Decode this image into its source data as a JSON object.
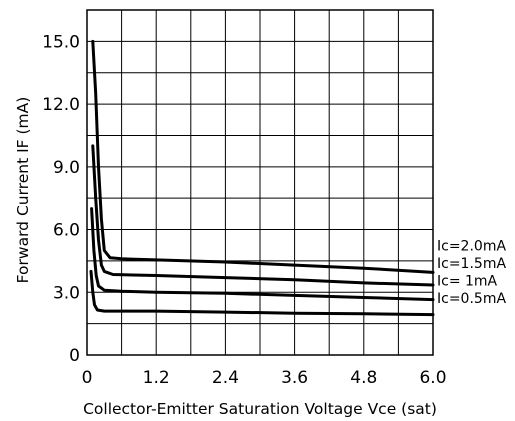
{
  "chart_data": {
    "type": "line",
    "title": "",
    "xlabel": "Collector-Emitter Saturation Voltage Vce (sat)",
    "ylabel": "Forward Current IF (mA)",
    "xlim": [
      0,
      6.0
    ],
    "ylim": [
      0,
      16.5
    ],
    "x_ticks": [
      "0",
      "1.2",
      "2.4",
      "3.6",
      "4.8",
      "6.0"
    ],
    "x_tick_values": [
      0,
      1.2,
      2.4,
      3.6,
      4.8,
      6.0
    ],
    "y_ticks": [
      "0",
      "3.0",
      "6.0",
      "9.0",
      "12.0",
      "15.0"
    ],
    "y_tick_values": [
      0,
      3.0,
      6.0,
      9.0,
      12.0,
      15.0
    ],
    "grid": true,
    "series": [
      {
        "name": "Ic=2.0mA",
        "color": "#000000",
        "points": [
          [
            0.1,
            15.0
          ],
          [
            0.15,
            12.5
          ],
          [
            0.2,
            9.0
          ],
          [
            0.25,
            6.5
          ],
          [
            0.3,
            5.0
          ],
          [
            0.4,
            4.65
          ],
          [
            0.6,
            4.6
          ],
          [
            1.2,
            4.55
          ],
          [
            2.4,
            4.45
          ],
          [
            3.6,
            4.3
          ],
          [
            4.8,
            4.15
          ],
          [
            6.0,
            3.95
          ]
        ]
      },
      {
        "name": "Ic=1.5mA",
        "color": "#000000",
        "points": [
          [
            0.1,
            10.0
          ],
          [
            0.15,
            7.5
          ],
          [
            0.2,
            5.5
          ],
          [
            0.25,
            4.3
          ],
          [
            0.3,
            4.0
          ],
          [
            0.45,
            3.85
          ],
          [
            1.2,
            3.8
          ],
          [
            2.4,
            3.7
          ],
          [
            3.6,
            3.6
          ],
          [
            4.8,
            3.45
          ],
          [
            6.0,
            3.35
          ]
        ]
      },
      {
        "name": "Ic=  1mA",
        "color": "#000000",
        "points": [
          [
            0.08,
            7.0
          ],
          [
            0.12,
            5.0
          ],
          [
            0.16,
            3.8
          ],
          [
            0.2,
            3.3
          ],
          [
            0.3,
            3.1
          ],
          [
            0.6,
            3.05
          ],
          [
            1.2,
            3.0
          ],
          [
            2.4,
            2.95
          ],
          [
            3.6,
            2.85
          ],
          [
            4.8,
            2.75
          ],
          [
            6.0,
            2.65
          ]
        ]
      },
      {
        "name": "Ic=0.5mA",
        "color": "#000000",
        "points": [
          [
            0.07,
            4.0
          ],
          [
            0.1,
            3.0
          ],
          [
            0.13,
            2.4
          ],
          [
            0.18,
            2.15
          ],
          [
            0.3,
            2.1
          ],
          [
            0.6,
            2.1
          ],
          [
            1.2,
            2.1
          ],
          [
            2.4,
            2.05
          ],
          [
            3.6,
            2.0
          ],
          [
            4.8,
            1.97
          ],
          [
            6.0,
            1.93
          ]
        ]
      }
    ]
  }
}
